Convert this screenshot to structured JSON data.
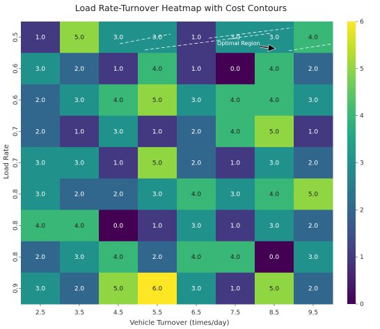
{
  "chart_data": {
    "type": "heatmap",
    "title": "Load Rate-Turnover Heatmap with Cost Contours",
    "xlabel": "Vehicle Turnover (times/day)",
    "ylabel": "Load Rate",
    "x_ticks": [
      "2.5",
      "3.5",
      "4.5",
      "5.5",
      "6.5",
      "7.5",
      "8.5",
      "9.5"
    ],
    "y_ticks": [
      "0.5",
      "0.6",
      "0.6",
      "0.7",
      "0.7",
      "0.8",
      "0.8",
      "0.8",
      "0.9"
    ],
    "values": [
      [
        1.0,
        5.0,
        3.0,
        3.0,
        1.0,
        3.0,
        3.0,
        4.0
      ],
      [
        3.0,
        2.0,
        1.0,
        4.0,
        1.0,
        0.0,
        4.0,
        2.0
      ],
      [
        2.0,
        3.0,
        4.0,
        5.0,
        3.0,
        4.0,
        4.0,
        3.0
      ],
      [
        2.0,
        1.0,
        3.0,
        1.0,
        2.0,
        4.0,
        5.0,
        1.0
      ],
      [
        3.0,
        3.0,
        1.0,
        5.0,
        2.0,
        1.0,
        3.0,
        2.0
      ],
      [
        3.0,
        2.0,
        2.0,
        3.0,
        4.0,
        3.0,
        4.0,
        5.0
      ],
      [
        4.0,
        4.0,
        0.0,
        1.0,
        3.0,
        1.0,
        3.0,
        2.0
      ],
      [
        2.0,
        3.0,
        4.0,
        2.0,
        4.0,
        4.0,
        0.0,
        3.0
      ],
      [
        3.0,
        2.0,
        5.0,
        6.0,
        3.0,
        1.0,
        5.0,
        2.0
      ]
    ],
    "value_format_decimals": 1,
    "colormap": "viridis",
    "vmin": 0,
    "vmax": 6,
    "colorbar_ticks": [
      0,
      1,
      2,
      3,
      4,
      5,
      6
    ],
    "annotation": {
      "text": "Optimal Region",
      "x": 7.5,
      "y": 0.5,
      "arrow": true
    },
    "contour_style": {
      "color": "#ffffff",
      "dashed": true
    }
  }
}
